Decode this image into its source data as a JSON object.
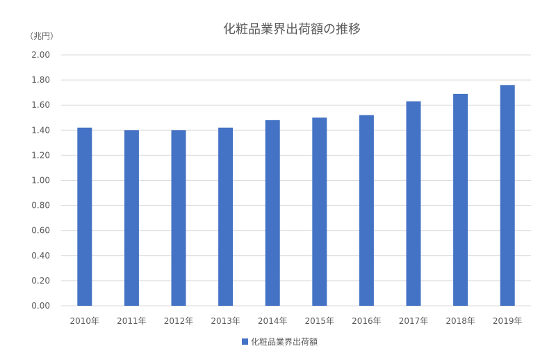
{
  "chart_data": {
    "type": "bar",
    "title": "化粧品業界出荷額の推移",
    "unit_label": "（兆円）",
    "categories": [
      "2010年",
      "2011年",
      "2012年",
      "2013年",
      "2014年",
      "2015年",
      "2016年",
      "2017年",
      "2018年",
      "2019年"
    ],
    "series": [
      {
        "name": "化粧品業界出荷額",
        "values": [
          1.42,
          1.4,
          1.4,
          1.42,
          1.48,
          1.5,
          1.52,
          1.63,
          1.69,
          1.76
        ]
      }
    ],
    "ylim": [
      0,
      2.0
    ],
    "yticks": [
      0,
      0.2,
      0.4,
      0.6,
      0.8,
      1.0,
      1.2,
      1.4,
      1.6,
      1.8,
      2.0
    ],
    "ytick_labels": [
      "0.00",
      "0.20",
      "0.40",
      "0.60",
      "0.80",
      "1.00",
      "1.20",
      "1.40",
      "1.60",
      "1.80",
      "2.00"
    ],
    "grid": true,
    "legend_position": "bottom",
    "colors": {
      "bar": "#4472c4",
      "grid": "#d9d9d9",
      "text": "#595959"
    }
  }
}
